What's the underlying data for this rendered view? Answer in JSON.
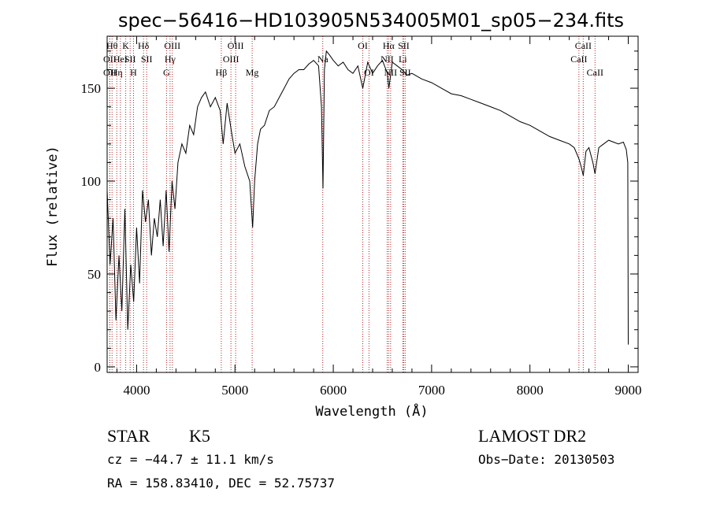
{
  "chart_data": {
    "type": "line",
    "title": "spec−56416−HD103905N534005M01_sp05−234.fits",
    "xlabel": "Wavelength (Å)",
    "ylabel": "Flux (relative)",
    "xlim": [
      3700,
      9100
    ],
    "ylim": [
      -3,
      178
    ],
    "x_ticks": [
      4000,
      5000,
      6000,
      7000,
      8000,
      9000
    ],
    "y_ticks": [
      0,
      50,
      100,
      150
    ],
    "grid": false,
    "line_color": "#000000",
    "marker_line_color": "#b22222",
    "series": [
      {
        "x": [
          3700,
          3730,
          3760,
          3790,
          3820,
          3850,
          3880,
          3910,
          3940,
          3970,
          4000,
          4030,
          4060,
          4090,
          4120,
          4150,
          4180,
          4210,
          4240,
          4270,
          4300,
          4330,
          4360,
          4390,
          4420,
          4460,
          4500,
          4540,
          4580,
          4620,
          4660,
          4700,
          4750,
          4800,
          4850,
          4880,
          4920,
          4960,
          5000,
          5050,
          5100,
          5150,
          5180,
          5200,
          5230,
          5260,
          5300,
          5350,
          5400,
          5450,
          5500,
          5550,
          5600,
          5650,
          5700,
          5750,
          5800,
          5850,
          5880,
          5895,
          5910,
          5930,
          5960,
          6000,
          6050,
          6100,
          6150,
          6200,
          6250,
          6300,
          6350,
          6400,
          6450,
          6500,
          6550,
          6565,
          6600,
          6650,
          6700,
          6750,
          6800,
          6900,
          7000,
          7100,
          7200,
          7300,
          7400,
          7500,
          7600,
          7700,
          7800,
          7900,
          8000,
          8100,
          8200,
          8300,
          8400,
          8450,
          8498,
          8520,
          8542,
          8570,
          8600,
          8640,
          8662,
          8700,
          8750,
          8800,
          8850,
          8900,
          8950,
          8980,
          8995,
          9000
        ],
        "y": [
          95,
          55,
          80,
          25,
          60,
          30,
          85,
          20,
          55,
          35,
          75,
          45,
          95,
          78,
          90,
          60,
          80,
          70,
          90,
          65,
          95,
          62,
          100,
          85,
          110,
          120,
          115,
          130,
          125,
          140,
          145,
          148,
          140,
          145,
          138,
          120,
          142,
          128,
          115,
          120,
          108,
          100,
          75,
          100,
          120,
          128,
          130,
          138,
          140,
          145,
          150,
          155,
          158,
          160,
          160,
          163,
          165,
          162,
          140,
          96,
          160,
          170,
          168,
          165,
          162,
          164,
          160,
          158,
          162,
          150,
          164,
          158,
          162,
          165,
          158,
          150,
          164,
          162,
          160,
          157,
          158,
          155,
          153,
          150,
          147,
          146,
          144,
          142,
          140,
          138,
          135,
          132,
          130,
          127,
          124,
          122,
          120,
          118,
          112,
          108,
          103,
          116,
          118,
          110,
          104,
          118,
          120,
          122,
          121,
          120,
          121,
          117,
          110,
          12
        ]
      }
    ],
    "line_markers": [
      {
        "wavelength": 3727,
        "label": "OII",
        "row": 1
      },
      {
        "wavelength": 3727,
        "label": "OII",
        "row": 2
      },
      {
        "wavelength": 3750,
        "label": "Hθ",
        "row": 0
      },
      {
        "wavelength": 3798,
        "label": "Hη",
        "row": 2
      },
      {
        "wavelength": 3835,
        "label": "HeI",
        "row": 1
      },
      {
        "wavelength": 3889,
        "label": "K",
        "row": 0
      },
      {
        "wavelength": 3934,
        "label": "SII",
        "row": 1
      },
      {
        "wavelength": 3968,
        "label": "H",
        "row": 2
      },
      {
        "wavelength": 4070,
        "label": "Hδ",
        "row": 0
      },
      {
        "wavelength": 4102,
        "label": "SII",
        "row": 1
      },
      {
        "wavelength": 4304,
        "label": "G",
        "row": 2
      },
      {
        "wavelength": 4340,
        "label": "Hγ",
        "row": 1
      },
      {
        "wavelength": 4363,
        "label": "OIII",
        "row": 0
      },
      {
        "wavelength": 4861,
        "label": "Hβ",
        "row": 2
      },
      {
        "wavelength": 4959,
        "label": "OIII",
        "row": 1
      },
      {
        "wavelength": 5007,
        "label": "OIII",
        "row": 0
      },
      {
        "wavelength": 5175,
        "label": "Mg",
        "row": 2
      },
      {
        "wavelength": 5893,
        "label": "Na",
        "row": 1
      },
      {
        "wavelength": 6300,
        "label": "OI",
        "row": 0
      },
      {
        "wavelength": 6363,
        "label": "OI",
        "row": 2
      },
      {
        "wavelength": 6548,
        "label": "NII",
        "row": 1
      },
      {
        "wavelength": 6563,
        "label": "Hα",
        "row": 0
      },
      {
        "wavelength": 6583,
        "label": "NII",
        "row": 2
      },
      {
        "wavelength": 6707,
        "label": "Li",
        "row": 1
      },
      {
        "wavelength": 6716,
        "label": "SII",
        "row": 0
      },
      {
        "wavelength": 6731,
        "label": "SII",
        "row": 2
      },
      {
        "wavelength": 8498,
        "label": "CaII",
        "row": 1
      },
      {
        "wavelength": 8542,
        "label": "CaII",
        "row": 0
      },
      {
        "wavelength": 8662,
        "label": "CaII",
        "row": 2
      }
    ]
  },
  "info": {
    "object_class": "STAR",
    "subclass": "K5",
    "survey": "LAMOST DR2",
    "redshift_line": "cz = −44.7 ± 11.1 km/s",
    "coords_line": "RA = 158.83410, DEC =  52.75737",
    "obs_date_line": "Obs−Date: 20130503"
  }
}
